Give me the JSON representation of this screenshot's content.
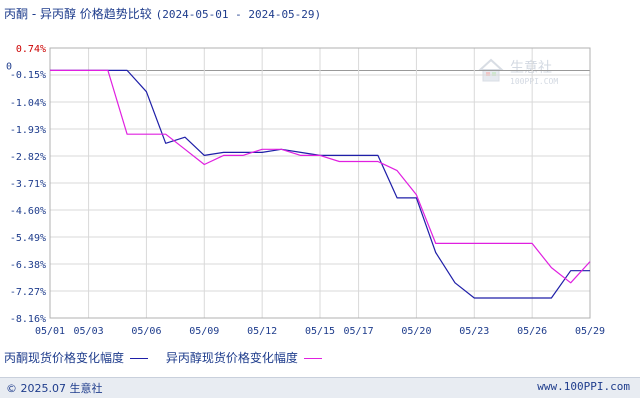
{
  "title": {
    "main": "丙酮 - 异丙醇 价格趋势比较",
    "range": "(2024-05-01 - 2024-05-29)"
  },
  "watermark": {
    "name": "生意社",
    "url": "100PPI.COM"
  },
  "footer": {
    "copyright": "© 2025.07 生意社",
    "site": "www.100PPI.com"
  },
  "colors": {
    "title": "#1e3c8c",
    "axis_text_red": "#cc0000",
    "axis_text": "#1e3c8c",
    "grid": "#d9d9d9",
    "zero_line": "#999999",
    "series_1": "#1f1fa8",
    "series_2": "#e020e0"
  },
  "chart_data": {
    "type": "line",
    "title": "丙酮 - 异丙醇 价格趋势比较",
    "subtitle": "(2024-05-01 - 2024-05-29)",
    "x_tick_labels": [
      "05/01",
      "05/03",
      "05/06",
      "05/09",
      "05/12",
      "05/15",
      "05/17",
      "05/20",
      "05/23",
      "05/26",
      "05/29"
    ],
    "y_tick_labels": [
      "0.74%",
      "0",
      "-0.15%",
      "-1.04%",
      "-1.93%",
      "-2.82%",
      "-3.71%",
      "-4.60%",
      "-5.49%",
      "-6.38%",
      "-7.27%",
      "-8.16%"
    ],
    "ylim": [
      -8.16,
      0.74
    ],
    "xlim": [
      "05/01",
      "05/29"
    ],
    "grid": true,
    "legend_position": "bottom",
    "series": [
      {
        "name": "丙酮现货价格变化幅度",
        "points": [
          [
            "05/01",
            0
          ],
          [
            "05/02",
            0
          ],
          [
            "05/03",
            0
          ],
          [
            "05/04",
            0
          ],
          [
            "05/05",
            0
          ],
          [
            "05/06",
            -0.7
          ],
          [
            "05/07",
            -2.4
          ],
          [
            "05/08",
            -2.2
          ],
          [
            "05/09",
            -2.8
          ],
          [
            "05/10",
            -2.7
          ],
          [
            "05/11",
            -2.7
          ],
          [
            "05/12",
            -2.7
          ],
          [
            "05/13",
            -2.6
          ],
          [
            "05/14",
            -2.7
          ],
          [
            "05/15",
            -2.8
          ],
          [
            "05/16",
            -2.8
          ],
          [
            "05/17",
            -2.8
          ],
          [
            "05/18",
            -2.8
          ],
          [
            "05/19",
            -4.2
          ],
          [
            "05/20",
            -4.2
          ],
          [
            "05/21",
            -6.0
          ],
          [
            "05/22",
            -7.0
          ],
          [
            "05/23",
            -7.5
          ],
          [
            "05/24",
            -7.5
          ],
          [
            "05/25",
            -7.5
          ],
          [
            "05/26",
            -7.5
          ],
          [
            "05/27",
            -7.5
          ],
          [
            "05/28",
            -6.6
          ],
          [
            "05/29",
            -6.6
          ]
        ]
      },
      {
        "name": "异丙醇现货价格变化幅度",
        "points": [
          [
            "05/01",
            0
          ],
          [
            "05/02",
            0
          ],
          [
            "05/03",
            0
          ],
          [
            "05/04",
            0
          ],
          [
            "05/05",
            -2.1
          ],
          [
            "05/06",
            -2.1
          ],
          [
            "05/07",
            -2.1
          ],
          [
            "05/08",
            -2.6
          ],
          [
            "05/09",
            -3.1
          ],
          [
            "05/10",
            -2.8
          ],
          [
            "05/11",
            -2.8
          ],
          [
            "05/12",
            -2.6
          ],
          [
            "05/13",
            -2.6
          ],
          [
            "05/14",
            -2.8
          ],
          [
            "05/15",
            -2.8
          ],
          [
            "05/16",
            -3.0
          ],
          [
            "05/17",
            -3.0
          ],
          [
            "05/18",
            -3.0
          ],
          [
            "05/19",
            -3.3
          ],
          [
            "05/20",
            -4.1
          ],
          [
            "05/21",
            -5.7
          ],
          [
            "05/22",
            -5.7
          ],
          [
            "05/23",
            -5.7
          ],
          [
            "05/24",
            -5.7
          ],
          [
            "05/25",
            -5.7
          ],
          [
            "05/26",
            -5.7
          ],
          [
            "05/27",
            -6.5
          ],
          [
            "05/28",
            -7.0
          ],
          [
            "05/29",
            -6.3
          ]
        ]
      }
    ]
  }
}
